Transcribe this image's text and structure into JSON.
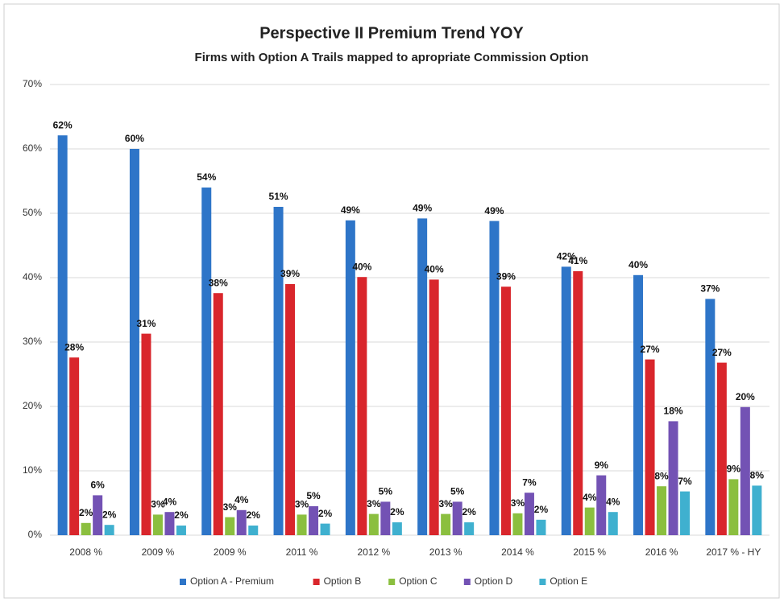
{
  "chart_data": {
    "type": "bar",
    "title": "Perspective II Premium Trend YOY",
    "subtitle": "Firms with Option A Trails mapped to apropriate Commission Option",
    "categories": [
      "2008 %",
      "2009 %",
      "2009 %",
      "2011 %",
      "2012 %",
      "2013 %",
      "2014 %",
      "2015 %",
      "2016 %",
      "2017 % - HY"
    ],
    "series": [
      {
        "name": "Option A - Premium",
        "color": "#2e75c8",
        "values": [
          62.1,
          60,
          54,
          51,
          48.9,
          49.2,
          48.8,
          41.7,
          40.4,
          36.7
        ],
        "value_labels": [
          "62%",
          "60%",
          "54%",
          "51%",
          "49%",
          "49%",
          "49%",
          "42%",
          "40%",
          "37%"
        ]
      },
      {
        "name": "Option B",
        "color": "#d9262c",
        "values": [
          27.6,
          31.3,
          37.6,
          39,
          40.1,
          39.7,
          38.6,
          41,
          27.3,
          26.8
        ],
        "value_labels": [
          "28%",
          "31%",
          "38%",
          "39%",
          "40%",
          "40%",
          "39%",
          "41%",
          "27%",
          "27%"
        ]
      },
      {
        "name": "Option C",
        "color": "#8bbf3f",
        "values": [
          1.9,
          3.2,
          2.8,
          3.2,
          3.3,
          3.3,
          3.4,
          4.3,
          7.6,
          8.7
        ],
        "value_labels": [
          "2%",
          "3%",
          "3%",
          "3%",
          "3%",
          "3%",
          "3%",
          "4%",
          "8%",
          "9%"
        ]
      },
      {
        "name": "Option D",
        "color": "#7352b4",
        "values": [
          6.2,
          3.6,
          3.9,
          4.5,
          5.2,
          5.2,
          6.6,
          9.3,
          17.7,
          19.9
        ],
        "value_labels": [
          "6%",
          "4%",
          "4%",
          "5%",
          "5%",
          "5%",
          "7%",
          "9%",
          "18%",
          "20%"
        ]
      },
      {
        "name": "Option E",
        "color": "#3fb0cf",
        "values": [
          1.6,
          1.5,
          1.5,
          1.8,
          2,
          2,
          2.4,
          3.6,
          6.8,
          7.7
        ],
        "value_labels": [
          "2%",
          "2%",
          "2%",
          "2%",
          "2%",
          "2%",
          "2%",
          "4%",
          "7%",
          "8%"
        ]
      }
    ],
    "ylim": [
      0,
      70
    ],
    "yticks": [
      {
        "value": 0,
        "label": "0%"
      },
      {
        "value": 10,
        "label": "10%"
      },
      {
        "value": 20,
        "label": "20%"
      },
      {
        "value": 30,
        "label": "30%"
      },
      {
        "value": 40,
        "label": "40%"
      },
      {
        "value": 50,
        "label": "50%"
      },
      {
        "value": 60,
        "label": "60%"
      },
      {
        "value": 70,
        "label": "70%"
      }
    ],
    "grid": true,
    "legend": "bottom"
  }
}
